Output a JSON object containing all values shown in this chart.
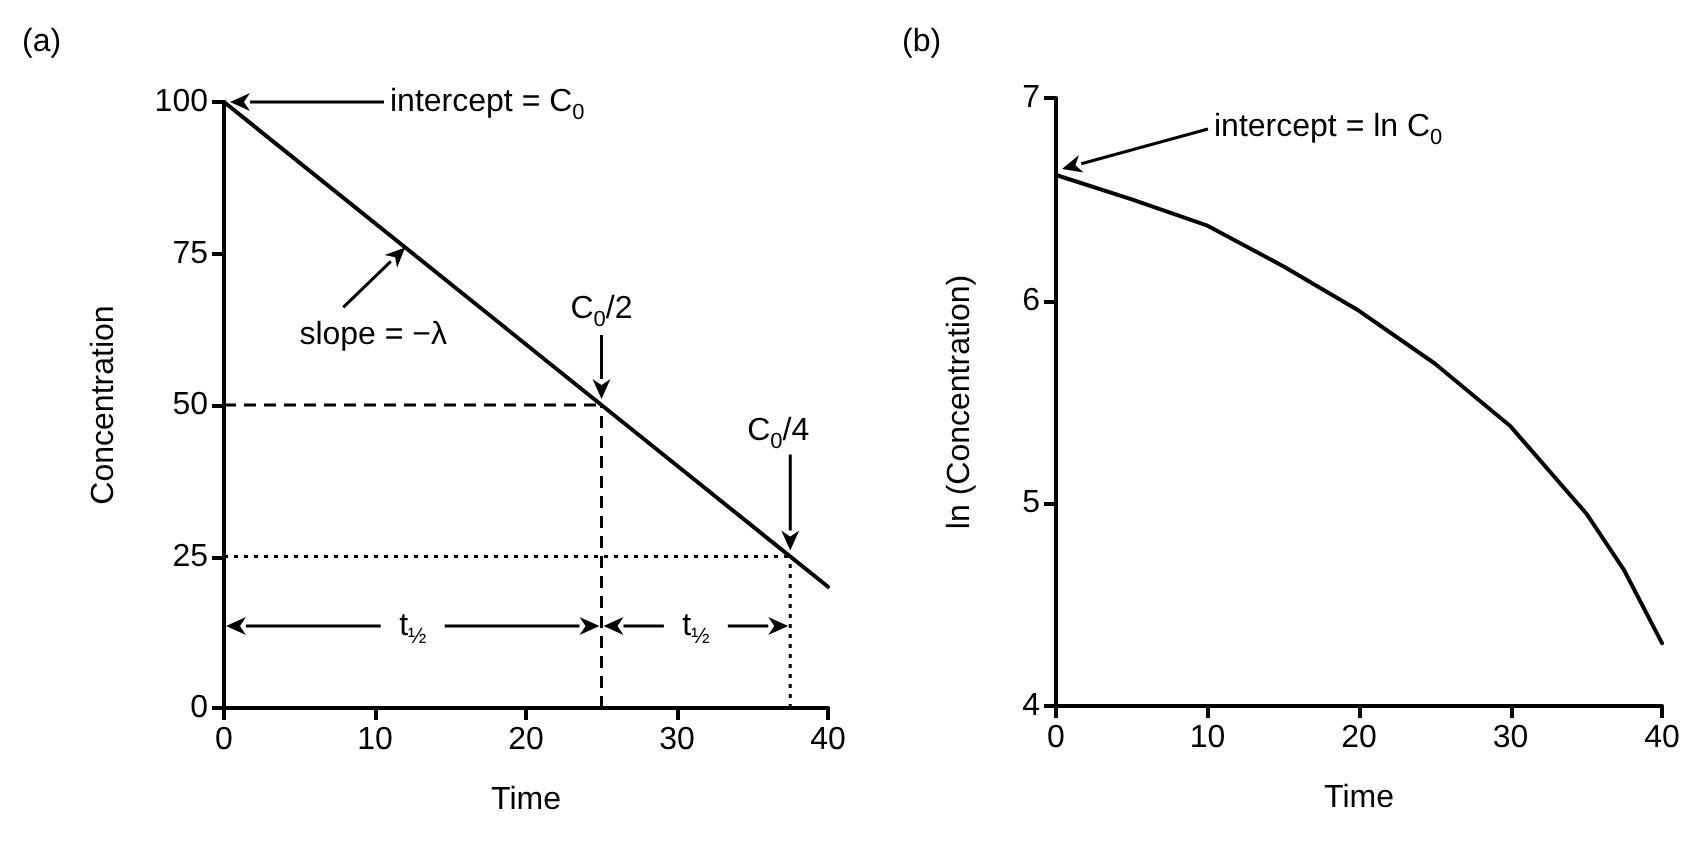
{
  "chart_data": [
    {
      "type": "line",
      "title": "(a)",
      "xlabel": "Time",
      "ylabel": "Concentration",
      "x": [
        0,
        40
      ],
      "series": [
        {
          "color": "#000000",
          "values": [
            100,
            20
          ]
        }
      ],
      "xlim": [
        0,
        40
      ],
      "xticks": [
        0,
        10,
        20,
        30,
        40
      ],
      "ylim": [
        0,
        100
      ],
      "yticks": [
        0,
        25,
        50,
        75,
        100
      ],
      "marker": "none",
      "line_style": "solid",
      "ref_lines": [
        {
          "axis": "y",
          "value": 50,
          "label": null,
          "color": "#000000",
          "line_style": "dashed"
        },
        {
          "axis": "x",
          "value": 25,
          "label": null,
          "color": "#000000",
          "line_style": "dashed"
        },
        {
          "axis": "y",
          "value": 25,
          "label": null,
          "color": "#000000",
          "line_style": "dotted"
        },
        {
          "axis": "x",
          "value": 37.5,
          "label": null,
          "color": "#000000",
          "line_style": "dotted"
        }
      ],
      "annotations": [
        "intercept = C$_{0}$",
        {
          "text": "slope = −λ",
          "x": 12,
          "y": 76
        },
        {
          "text": "C$_{0}$/2",
          "x": 25,
          "y": 50
        },
        "C$_{0}$/4",
        "t$_{½}$",
        "t$_{½}$"
      ]
    },
    {
      "type": "line",
      "title": "(b)",
      "xlabel": "Time",
      "ylabel": "ln (Concentration)",
      "x": [
        0,
        5,
        10,
        15,
        20,
        25,
        30,
        35,
        37.5,
        40
      ],
      "series": [
        {
          "color": "#000000",
          "values": [
            6.62,
            6.5,
            6.37,
            6.17,
            5.95,
            5.69,
            5.38,
            4.95,
            4.67,
            4.31
          ]
        }
      ],
      "xlim": [
        0,
        40
      ],
      "xticks": [
        0,
        10,
        20,
        30,
        40
      ],
      "ylim": [
        4,
        7
      ],
      "yticks": [
        4,
        5,
        6,
        7
      ],
      "marker": "none",
      "line_style": "solid",
      "annotations": [
        "intercept = ln C$_{0}$"
      ]
    }
  ]
}
